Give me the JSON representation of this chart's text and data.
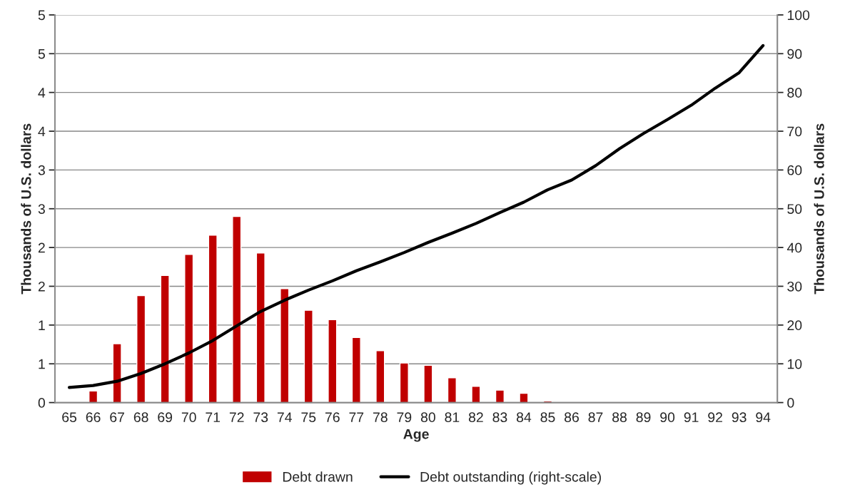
{
  "chart_data": {
    "type": "bar",
    "xlabel": "Age",
    "ylabel": "Thousands of U.S. dollars",
    "y2label": "Thousands of U.S. dollars",
    "categories": [
      "65",
      "66",
      "67",
      "68",
      "69",
      "70",
      "71",
      "72",
      "73",
      "74",
      "75",
      "76",
      "77",
      "78",
      "79",
      "80",
      "81",
      "82",
      "83",
      "84",
      "85",
      "86",
      "87",
      "88",
      "89",
      "90",
      "91",
      "92",
      "93",
      "94"
    ],
    "series": [
      {
        "name": "Debt drawn",
        "color": "#c00000",
        "values": [
          null,
          0.15,
          0.76,
          1.38,
          1.64,
          1.91,
          2.16,
          2.4,
          1.93,
          1.47,
          1.19,
          1.07,
          0.84,
          0.67,
          0.51,
          0.48,
          0.32,
          0.21,
          0.16,
          0.12,
          0.02,
          null,
          null,
          null,
          null,
          null,
          null,
          null,
          null,
          null
        ]
      },
      {
        "name": "Debt outstanding (right-scale)",
        "type": "line",
        "axis": "y2",
        "color": "#000000",
        "values": [
          3.9,
          4.4,
          5.5,
          7.5,
          10,
          12.8,
          16,
          19.8,
          23.5,
          26.4,
          29,
          31.4,
          34,
          36.3,
          38.7,
          41.3,
          43.7,
          46.2,
          49,
          51.7,
          54.9,
          57.4,
          61.1,
          65.5,
          69.4,
          73,
          76.7,
          81.1,
          85.1,
          92.1
        ]
      }
    ],
    "ylim": [
      0,
      5
    ],
    "yticks": [
      0,
      {
        "value": 0.5,
        "label": "1"
      },
      1,
      {
        "value": 1.5,
        "label": "2"
      },
      2,
      {
        "value": 2.5,
        "label": "3"
      },
      3,
      {
        "value": 3.5,
        "label": "4"
      },
      4,
      {
        "value": 4.5,
        "label": "5"
      },
      5
    ],
    "y2lim": [
      0,
      100
    ],
    "y2ticks": [
      0,
      10,
      20,
      30,
      40,
      50,
      60,
      70,
      80,
      90,
      100
    ],
    "grid": "y",
    "legend": "bottom",
    "line_style": "solid"
  }
}
